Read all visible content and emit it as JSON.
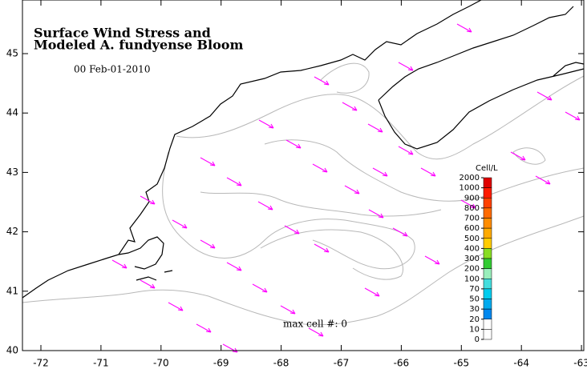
{
  "title": [
    "Surface Wind Stress and",
    "Modeled A. fundyense Bloom"
  ],
  "timestamp": "00  Feb-01-2010",
  "annotation": "max cell #: 0",
  "x_ticks": [
    "-72",
    "-71",
    "-70",
    "-69",
    "-68",
    "-67",
    "-66",
    "-65",
    "-64",
    "-63"
  ],
  "y_ticks": [
    "40",
    "41",
    "42",
    "43",
    "44",
    "45"
  ],
  "colorbar": {
    "unit": "Cell/L",
    "labels": [
      "2000",
      "1000",
      "900",
      "800",
      "700",
      "600",
      "500",
      "400",
      "300",
      "200",
      "100",
      "70",
      "50",
      "30",
      "20",
      "10",
      "0"
    ],
    "colors": [
      "#e00000",
      "#ff1a00",
      "#ff4000",
      "#ff6a00",
      "#ff8c00",
      "#ffaa00",
      "#ffcc00",
      "#88dd22",
      "#33cc33",
      "#99eebb",
      "#44dddd",
      "#00ccee",
      "#00aaee",
      "#0088ee",
      "#ffffff",
      "#ffffff"
    ]
  }
}
